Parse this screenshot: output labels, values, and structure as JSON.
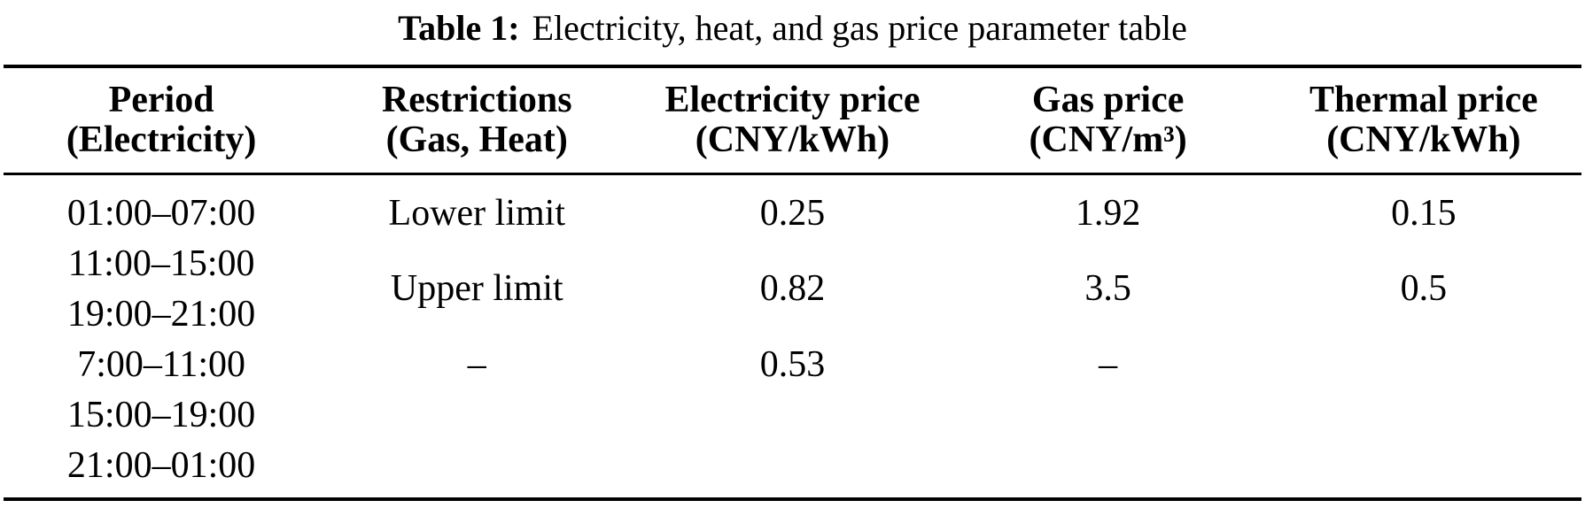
{
  "caption": {
    "label": "Table 1:",
    "text": "Electricity, heat, and gas price parameter table"
  },
  "table": {
    "columns": [
      {
        "line1": "Period",
        "line2": "(Electricity)"
      },
      {
        "line1": "Restrictions",
        "line2": "(Gas, Heat)"
      },
      {
        "line1": "Electricity price",
        "line2": "(CNY/kWh)"
      },
      {
        "line1": "Gas price",
        "line2": "(CNY/m³)"
      },
      {
        "line1": "Thermal price",
        "line2": "(CNY/kWh)"
      }
    ],
    "rows": [
      {
        "period": "01:00–07:00",
        "restriction": "Lower limit",
        "electricity_price": "0.25",
        "gas_price": "1.92",
        "thermal_price": "0.15"
      },
      {
        "period": "11:00–15:00",
        "restriction": "Upper limit",
        "electricity_price": "0.82",
        "gas_price": "3.5",
        "thermal_price": "0.5"
      },
      {
        "period": "19:00–21:00"
      },
      {
        "period": "7:00–11:00",
        "restriction": "–",
        "electricity_price": "0.53",
        "gas_price": "–",
        "thermal_price": ""
      },
      {
        "period": "15:00–19:00"
      },
      {
        "period": "21:00–01:00"
      }
    ]
  }
}
